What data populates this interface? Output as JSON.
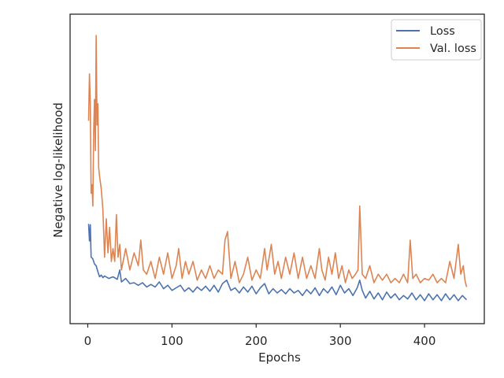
{
  "chart_data": {
    "type": "line",
    "xlabel": "Epochs",
    "ylabel": "Negative log-likelihood",
    "xlim": [
      -21,
      471
    ],
    "ylim": [
      -2.3,
      34
    ],
    "xticks": [
      0,
      100,
      200,
      300,
      400
    ],
    "y_tick_labels_shown": false,
    "grid": false,
    "legend_placement": "top-right",
    "series": [
      {
        "name": "Loss",
        "color": "#4c72b0",
        "points": [
          [
            1,
            9.4
          ],
          [
            2,
            7.4
          ],
          [
            3,
            9.3
          ],
          [
            4,
            5.5
          ],
          [
            6,
            5.3
          ],
          [
            8,
            4.7
          ],
          [
            10,
            4.5
          ],
          [
            12,
            3.8
          ],
          [
            14,
            3.2
          ],
          [
            16,
            3.4
          ],
          [
            18,
            3.1
          ],
          [
            20,
            3.3
          ],
          [
            25,
            3.0
          ],
          [
            30,
            3.2
          ],
          [
            35,
            2.9
          ],
          [
            38,
            4.0
          ],
          [
            40,
            2.6
          ],
          [
            45,
            3.0
          ],
          [
            50,
            2.4
          ],
          [
            55,
            2.5
          ],
          [
            60,
            2.2
          ],
          [
            65,
            2.5
          ],
          [
            70,
            2.0
          ],
          [
            75,
            2.3
          ],
          [
            80,
            2.0
          ],
          [
            85,
            2.6
          ],
          [
            90,
            1.8
          ],
          [
            95,
            2.2
          ],
          [
            100,
            1.6
          ],
          [
            105,
            1.9
          ],
          [
            110,
            2.2
          ],
          [
            115,
            1.5
          ],
          [
            120,
            1.9
          ],
          [
            125,
            1.4
          ],
          [
            130,
            2.0
          ],
          [
            135,
            1.6
          ],
          [
            140,
            2.1
          ],
          [
            145,
            1.5
          ],
          [
            150,
            2.2
          ],
          [
            155,
            1.4
          ],
          [
            160,
            2.4
          ],
          [
            165,
            2.8
          ],
          [
            170,
            1.6
          ],
          [
            175,
            1.9
          ],
          [
            180,
            1.3
          ],
          [
            185,
            2.0
          ],
          [
            190,
            1.4
          ],
          [
            195,
            2.1
          ],
          [
            200,
            1.2
          ],
          [
            205,
            1.9
          ],
          [
            210,
            2.4
          ],
          [
            215,
            1.2
          ],
          [
            220,
            1.8
          ],
          [
            225,
            1.3
          ],
          [
            230,
            1.7
          ],
          [
            235,
            1.2
          ],
          [
            240,
            1.8
          ],
          [
            245,
            1.3
          ],
          [
            250,
            1.6
          ],
          [
            255,
            1.0
          ],
          [
            260,
            1.7
          ],
          [
            265,
            1.2
          ],
          [
            270,
            1.9
          ],
          [
            275,
            1.0
          ],
          [
            280,
            1.8
          ],
          [
            285,
            1.3
          ],
          [
            290,
            2.0
          ],
          [
            295,
            1.1
          ],
          [
            300,
            2.2
          ],
          [
            305,
            1.3
          ],
          [
            310,
            1.8
          ],
          [
            315,
            1.0
          ],
          [
            320,
            1.9
          ],
          [
            323,
            2.8
          ],
          [
            326,
            1.6
          ],
          [
            330,
            0.7
          ],
          [
            335,
            1.5
          ],
          [
            340,
            0.6
          ],
          [
            345,
            1.3
          ],
          [
            350,
            0.5
          ],
          [
            355,
            1.4
          ],
          [
            360,
            0.7
          ],
          [
            365,
            1.2
          ],
          [
            370,
            0.5
          ],
          [
            375,
            1.0
          ],
          [
            380,
            0.6
          ],
          [
            385,
            1.3
          ],
          [
            390,
            0.5
          ],
          [
            395,
            1.1
          ],
          [
            400,
            0.4
          ],
          [
            405,
            1.2
          ],
          [
            410,
            0.5
          ],
          [
            415,
            1.1
          ],
          [
            420,
            0.4
          ],
          [
            425,
            1.2
          ],
          [
            430,
            0.5
          ],
          [
            435,
            1.1
          ],
          [
            440,
            0.4
          ],
          [
            445,
            1.0
          ],
          [
            450,
            0.5
          ]
        ]
      },
      {
        "name": "Val. loss",
        "color": "#dd8452",
        "points": [
          [
            1,
            21.5
          ],
          [
            2,
            27.0
          ],
          [
            3,
            23.5
          ],
          [
            4,
            13.0
          ],
          [
            5,
            14.0
          ],
          [
            6,
            11.5
          ],
          [
            7,
            20.0
          ],
          [
            8,
            24.0
          ],
          [
            9,
            18.0
          ],
          [
            10,
            31.5
          ],
          [
            11,
            21.0
          ],
          [
            12,
            23.5
          ],
          [
            13,
            16.0
          ],
          [
            14,
            15.0
          ],
          [
            16,
            13.5
          ],
          [
            18,
            11.0
          ],
          [
            20,
            5.5
          ],
          [
            22,
            10.0
          ],
          [
            24,
            6.0
          ],
          [
            26,
            9.0
          ],
          [
            28,
            5.0
          ],
          [
            30,
            6.5
          ],
          [
            32,
            5.0
          ],
          [
            34,
            10.5
          ],
          [
            36,
            5.5
          ],
          [
            38,
            7.0
          ],
          [
            40,
            4.0
          ],
          [
            45,
            6.5
          ],
          [
            50,
            4.0
          ],
          [
            55,
            6.0
          ],
          [
            60,
            4.5
          ],
          [
            63,
            7.5
          ],
          [
            66,
            4.0
          ],
          [
            70,
            3.5
          ],
          [
            75,
            5.0
          ],
          [
            80,
            3.0
          ],
          [
            85,
            5.5
          ],
          [
            90,
            3.5
          ],
          [
            95,
            6.0
          ],
          [
            100,
            3.0
          ],
          [
            105,
            4.5
          ],
          [
            108,
            6.5
          ],
          [
            112,
            3.0
          ],
          [
            116,
            5.0
          ],
          [
            120,
            3.5
          ],
          [
            125,
            5.0
          ],
          [
            130,
            2.8
          ],
          [
            135,
            4.0
          ],
          [
            140,
            3.0
          ],
          [
            145,
            4.5
          ],
          [
            150,
            3.0
          ],
          [
            155,
            4.0
          ],
          [
            160,
            3.5
          ],
          [
            163,
            7.5
          ],
          [
            166,
            8.5
          ],
          [
            170,
            3.0
          ],
          [
            175,
            5.0
          ],
          [
            180,
            2.5
          ],
          [
            185,
            3.5
          ],
          [
            190,
            5.5
          ],
          [
            195,
            2.8
          ],
          [
            200,
            4.0
          ],
          [
            205,
            3.0
          ],
          [
            210,
            6.5
          ],
          [
            213,
            4.0
          ],
          [
            218,
            7.0
          ],
          [
            222,
            3.5
          ],
          [
            226,
            5.0
          ],
          [
            230,
            3.0
          ],
          [
            235,
            5.5
          ],
          [
            240,
            3.5
          ],
          [
            245,
            6.0
          ],
          [
            250,
            3.0
          ],
          [
            255,
            5.5
          ],
          [
            260,
            3.0
          ],
          [
            265,
            4.5
          ],
          [
            270,
            3.0
          ],
          [
            275,
            6.5
          ],
          [
            278,
            4.0
          ],
          [
            282,
            2.8
          ],
          [
            286,
            5.5
          ],
          [
            290,
            3.5
          ],
          [
            294,
            6.0
          ],
          [
            298,
            3.0
          ],
          [
            302,
            4.5
          ],
          [
            306,
            2.5
          ],
          [
            310,
            4.0
          ],
          [
            314,
            3.0
          ],
          [
            318,
            3.5
          ],
          [
            321,
            4.0
          ],
          [
            323,
            11.5
          ],
          [
            326,
            3.5
          ],
          [
            330,
            3.0
          ],
          [
            335,
            4.5
          ],
          [
            340,
            2.5
          ],
          [
            345,
            3.5
          ],
          [
            350,
            2.8
          ],
          [
            355,
            3.5
          ],
          [
            360,
            2.5
          ],
          [
            365,
            3.0
          ],
          [
            370,
            2.5
          ],
          [
            375,
            3.5
          ],
          [
            380,
            2.5
          ],
          [
            383,
            7.5
          ],
          [
            386,
            3.0
          ],
          [
            390,
            3.5
          ],
          [
            395,
            2.5
          ],
          [
            400,
            3.0
          ],
          [
            405,
            2.8
          ],
          [
            410,
            3.5
          ],
          [
            415,
            2.5
          ],
          [
            420,
            3.0
          ],
          [
            425,
            2.5
          ],
          [
            430,
            5.0
          ],
          [
            435,
            3.0
          ],
          [
            440,
            7.0
          ],
          [
            443,
            3.5
          ],
          [
            446,
            4.5
          ],
          [
            448,
            2.8
          ],
          [
            450,
            2.0
          ]
        ]
      }
    ]
  }
}
